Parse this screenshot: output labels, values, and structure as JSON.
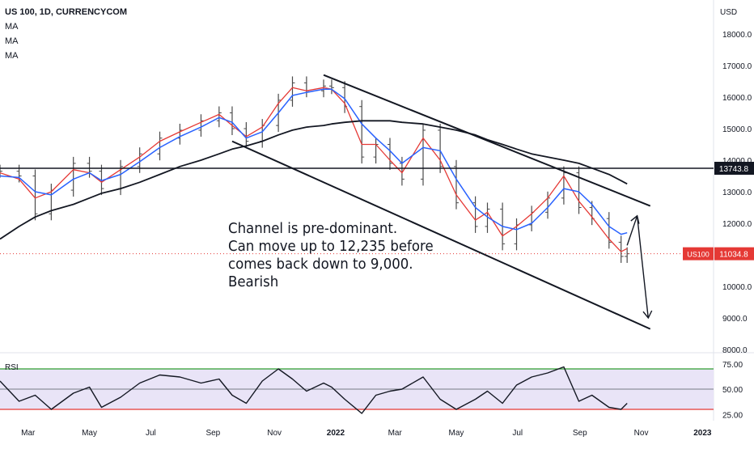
{
  "header": {
    "symbol_line": "US 100, 1D, CURRENCYCOM",
    "indicators": [
      "MA",
      "MA",
      "MA"
    ]
  },
  "price_axis": {
    "currency": "USD",
    "labels": [
      "18000.0",
      "17000.0",
      "16000.0",
      "15000.0",
      "14000.0",
      "13000.0",
      "12000.0",
      "11000.0",
      "10000.0",
      "9000.0",
      "8000.0"
    ]
  },
  "rsi_axis": {
    "labels": [
      "75.00",
      "50.00",
      "25.00"
    ]
  },
  "rsi_label": "RSI",
  "badges": {
    "level_value": "13743.8",
    "symbol_tag": "US100",
    "last_price": "11034.8"
  },
  "annotation": {
    "lines": [
      "Channel is pre-dominant.",
      "Can move up to 12,235 before",
      "comes back down to 9,000.",
      "Bearish"
    ]
  },
  "colors": {
    "price_bars": "#4a4a4a",
    "ma_red": "#e53935",
    "ma_blue": "#2962ff",
    "ma_black": "#131722",
    "rsi_line": "#131722",
    "rsi_band": "#e9e4f7",
    "rsi_upper": "#2e9e2e",
    "rsi_mid": "#787b86",
    "rsi_lower": "#e53935",
    "badge_dark": "#131722",
    "badge_red": "#e53935",
    "last_price_dotted": "#e53935"
  },
  "chart_data": {
    "type": "line",
    "title": "US 100, 1D, CURRENCYCOM",
    "xlabel": "",
    "ylabel": "USD",
    "ylim": [
      8000,
      18500
    ],
    "x_ticks": [
      "Mar",
      "May",
      "Jul",
      "Sep",
      "Nov",
      "2022",
      "Mar",
      "May",
      "Jul",
      "Sep",
      "Nov",
      "2023"
    ],
    "x": [
      "2021-02-01",
      "2021-02-20",
      "2021-03-08",
      "2021-03-24",
      "2021-04-15",
      "2021-05-01",
      "2021-05-13",
      "2021-06-01",
      "2021-06-20",
      "2021-07-10",
      "2021-07-30",
      "2021-08-20",
      "2021-09-07",
      "2021-09-20",
      "2021-10-04",
      "2021-10-20",
      "2021-11-05",
      "2021-11-19",
      "2021-12-03",
      "2021-12-20",
      "2021-12-28",
      "2022-01-10",
      "2022-01-27",
      "2022-02-10",
      "2022-02-24",
      "2022-03-08",
      "2022-03-29",
      "2022-04-15",
      "2022-05-01",
      "2022-05-20",
      "2022-06-01",
      "2022-06-16",
      "2022-06-30",
      "2022-07-15",
      "2022-07-31",
      "2022-08-16",
      "2022-08-31",
      "2022-09-13",
      "2022-09-30",
      "2022-10-12",
      "2022-10-18"
    ],
    "series": [
      {
        "values": [
          13650,
          13500,
          12300,
          13050,
          13900,
          13650,
          13100,
          13800,
          14200,
          14700,
          14950,
          15250,
          15500,
          15000,
          14600,
          15100,
          15900,
          16450,
          16200,
          16350,
          16300,
          15700,
          14100,
          14500,
          13900,
          13400,
          14950,
          13800,
          12650,
          11900,
          12450,
          11350,
          11950,
          12350,
          12800,
          13600,
          12500,
          12150,
          11400,
          10950,
          11034.8
        ]
      }
    ],
    "moving_averages": [
      {
        "values": [
          13600,
          13400,
          12800,
          13000,
          13700,
          13600,
          13300,
          13700,
          14100,
          14600,
          14900,
          15200,
          15450,
          15100,
          14750,
          15050,
          15800,
          16300,
          16200,
          16300,
          16250,
          15800,
          14500,
          14500,
          14000,
          13600,
          14700,
          14000,
          12900,
          12100,
          12350,
          11600,
          11900,
          12300,
          12800,
          13500,
          12700,
          12200,
          11500,
          11100,
          11200
        ]
      },
      {
        "values": [
          13500,
          13450,
          13000,
          12900,
          13400,
          13600,
          13350,
          13550,
          13950,
          14400,
          14750,
          15050,
          15350,
          15200,
          14700,
          14900,
          15500,
          16050,
          16150,
          16250,
          16250,
          15950,
          15150,
          14700,
          14300,
          13900,
          14400,
          14300,
          13400,
          12500,
          12200,
          11900,
          11800,
          12000,
          12500,
          13100,
          13000,
          12600,
          11900,
          11650,
          11700
        ]
      },
      {
        "values": [
          11500,
          11900,
          12200,
          12400,
          12600,
          12800,
          12950,
          13100,
          13300,
          13550,
          13800,
          14000,
          14200,
          14350,
          14450,
          14600,
          14800,
          14950,
          15050,
          15100,
          15150,
          15200,
          15250,
          15250,
          15250,
          15200,
          15150,
          15050,
          14950,
          14800,
          14650,
          14500,
          14350,
          14200,
          14100,
          14000,
          13900,
          13750,
          13550,
          13350,
          13250
        ]
      }
    ],
    "horizontal_levels": [
      13743.8
    ],
    "last_price": 11034.8,
    "channel_lines": [
      {
        "x": [
          "2021-12-20",
          "2022-11-10"
        ],
        "y": [
          16700,
          12550
        ]
      },
      {
        "x": [
          "2021-09-20",
          "2022-11-10"
        ],
        "y": [
          14600,
          8650
        ]
      }
    ],
    "projection_arrows": [
      {
        "x": [
          "2022-10-18",
          "2022-10-28"
        ],
        "y": [
          11300,
          12235
        ]
      },
      {
        "x": [
          "2022-10-28",
          "2022-11-08"
        ],
        "y": [
          12235,
          9000
        ]
      }
    ],
    "rsi": {
      "type": "line",
      "levels": [
        70,
        50,
        30
      ],
      "ylim": [
        20,
        80
      ],
      "values": [
        58,
        38,
        44,
        30,
        46,
        52,
        32,
        42,
        56,
        64,
        62,
        56,
        60,
        44,
        36,
        58,
        70,
        60,
        48,
        56,
        52,
        40,
        26,
        44,
        48,
        50,
        62,
        40,
        30,
        40,
        48,
        36,
        54,
        62,
        66,
        72,
        38,
        44,
        32,
        30,
        36
      ]
    }
  }
}
